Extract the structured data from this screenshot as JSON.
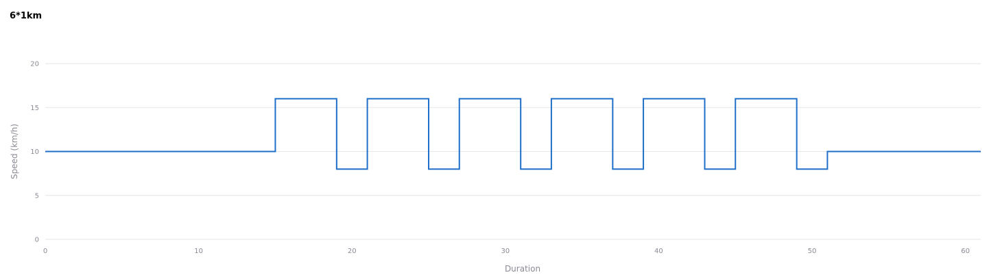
{
  "chart_data": {
    "type": "line",
    "step": "after",
    "title": "6*1km",
    "xlabel": "Duration",
    "ylabel": "Speed (km/h)",
    "xlim": [
      0,
      61
    ],
    "ylim": [
      0,
      20
    ],
    "x_ticks": [
      0,
      10,
      20,
      30,
      40,
      50,
      60
    ],
    "y_ticks": [
      0,
      5,
      10,
      15,
      20
    ],
    "grid": "horizontal",
    "line_color": "#1f6fc9",
    "series": [
      {
        "x": [
          0,
          15,
          19,
          21,
          25,
          27,
          31,
          33,
          37,
          39,
          43,
          45,
          49,
          51,
          61
        ],
        "y": [
          10,
          16,
          8,
          16,
          8,
          16,
          8,
          16,
          8,
          16,
          8,
          16,
          8,
          10,
          10
        ]
      }
    ]
  }
}
